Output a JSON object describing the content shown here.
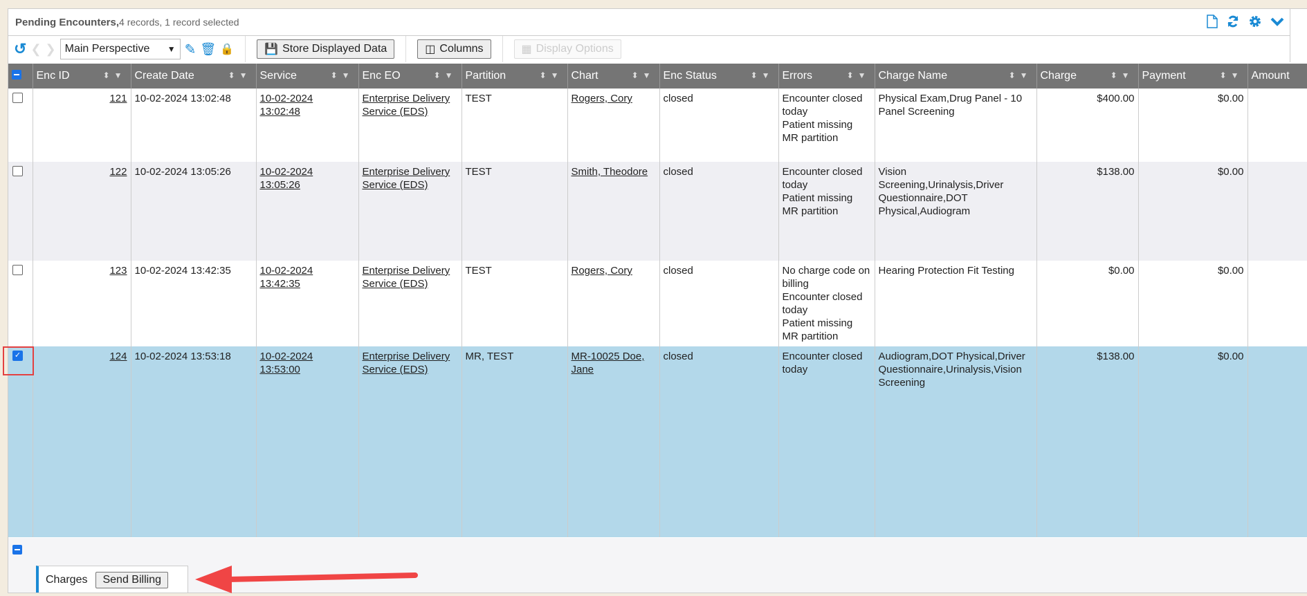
{
  "title": {
    "main": "Pending Encounters,",
    "sub": " 4 records, 1 record selected"
  },
  "toolbar": {
    "perspective": "Main Perspective",
    "store": "Store Displayed Data",
    "columns": "Columns",
    "display_options": "Display Options"
  },
  "columns": [
    "Enc ID",
    "Create Date",
    "Service",
    "Enc EO",
    "Partition",
    "Chart",
    "Enc Status",
    "Errors",
    "Charge Name",
    "Charge",
    "Payment",
    "Amount"
  ],
  "rows": [
    {
      "selected": false,
      "id": "121",
      "create": "10-02-2024 13:02:48",
      "service": "10-02-2024 13:02:48",
      "eo": "Enterprise Delivery Service (EDS)",
      "partition": "TEST",
      "chart": "Rogers, Cory",
      "status": "closed",
      "errors": [
        "Encounter closed today",
        "Patient missing MR partition"
      ],
      "charge_name": "Physical Exam,Drug Panel - 10 Panel Screening",
      "charge": "$400.00",
      "payment": "$0.00",
      "amount": ""
    },
    {
      "selected": false,
      "id": "122",
      "create": "10-02-2024 13:05:26",
      "service": "10-02-2024 13:05:26",
      "eo": "Enterprise Delivery Service (EDS)",
      "partition": "TEST",
      "chart": "Smith, Theodore",
      "status": "closed",
      "errors": [
        "Encounter closed today",
        "Patient missing MR partition"
      ],
      "charge_name": "Vision Screening,Urinalysis,Driver Questionnaire,DOT Physical,Audiogram",
      "charge": "$138.00",
      "payment": "$0.00",
      "amount": ""
    },
    {
      "selected": false,
      "id": "123",
      "create": "10-02-2024 13:42:35",
      "service": "10-02-2024 13:42:35",
      "eo": "Enterprise Delivery Service (EDS)",
      "partition": "TEST",
      "chart": "Rogers, Cory",
      "status": "closed",
      "errors": [
        "No charge code on billing",
        "Encounter closed today",
        "Patient missing MR partition"
      ],
      "charge_name": "Hearing Protection Fit Testing",
      "charge": "$0.00",
      "payment": "$0.00",
      "amount": ""
    },
    {
      "selected": true,
      "id": "124",
      "create": "10-02-2024 13:53:18",
      "service": "10-02-2024 13:53:00",
      "eo": "Enterprise Delivery Service (EDS)",
      "partition": "MR, TEST",
      "chart": "MR-10025 Doe, Jane",
      "status": "closed",
      "errors": [
        "Encounter closed today"
      ],
      "charge_name": "Audiogram,DOT Physical,Driver Questionnaire,Urinalysis,Vision Screening",
      "charge": "$138.00",
      "payment": "$0.00",
      "amount": ""
    }
  ],
  "footer": {
    "group_label": "Charges",
    "send_billing": "Send Billing"
  },
  "colors": {
    "accent": "#1a8ad4",
    "header_bg": "#757575",
    "selected_row": "#b3d8ea",
    "annotation": "#e34040"
  }
}
